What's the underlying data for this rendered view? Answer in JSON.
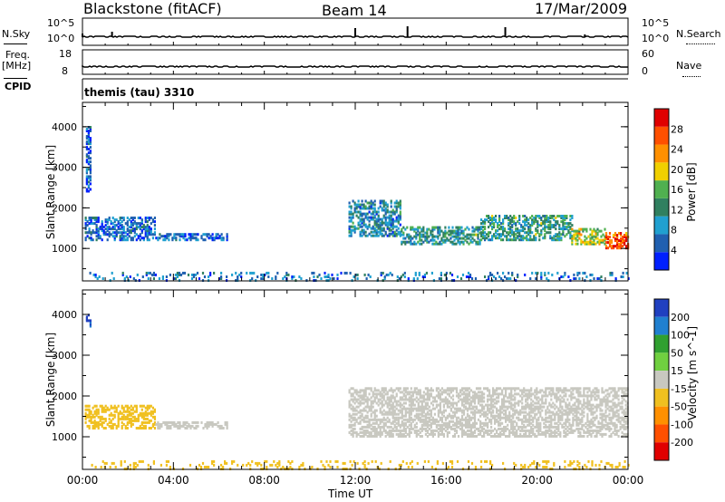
{
  "header": {
    "title": "Blackstone (fitACF)",
    "beam": "Beam 14",
    "date": "17/Mar/2009"
  },
  "top_panels": {
    "nsky_label": "N.Sky",
    "nsky_ticks": [
      "10^5",
      "10^0"
    ],
    "nsearch_label": "N.Search",
    "nsearch_ticks": [
      "10^5",
      "10^0"
    ],
    "freq_label": "Freq.",
    "freq_unit": "[MHz]",
    "freq_ticks": [
      "18",
      "8"
    ],
    "nave_label": "Nave",
    "nave_ticks": [
      "60",
      "0"
    ],
    "cpid_label": "CPID",
    "cpid_value": "themis (tau) 3310"
  },
  "x_axis": {
    "label": "Time UT",
    "ticks": [
      "00:00",
      "04:00",
      "08:00",
      "12:00",
      "16:00",
      "20:00",
      "00:00"
    ]
  },
  "colors": {
    "power": [
      "#0020ff",
      "#2060b0",
      "#20a0d0",
      "#308060",
      "#50b050",
      "#f0d000",
      "#ff9000",
      "#ff5000",
      "#e00000"
    ],
    "velocity": [
      "#2040c0",
      "#2080d0",
      "#30a030",
      "#70d040",
      "#c8c8c0",
      "#f0c020",
      "#ff9000",
      "#ff5000",
      "#e00000"
    ]
  },
  "chart_data": [
    {
      "type": "heatmap",
      "panel": "power",
      "ylabel": "Slant Range [km]",
      "yticks": [
        1000,
        2000,
        3000,
        4000
      ],
      "ylim": [
        200,
        4600
      ],
      "xlim": [
        0,
        24
      ],
      "colorbar_label": "Power [dB]",
      "colorbar_ticks": [
        4,
        8,
        12,
        16,
        20,
        24,
        28
      ],
      "colorbar_range": [
        0,
        32
      ],
      "regions": [
        {
          "t0": 0.1,
          "t1": 3.2,
          "r0": 1200,
          "r1": 1750,
          "v": 6
        },
        {
          "t0": 3.2,
          "t1": 6.4,
          "r0": 1200,
          "r1": 1350,
          "v": 5
        },
        {
          "t0": 0.15,
          "t1": 0.35,
          "r0": 2400,
          "r1": 4000,
          "v": 5
        },
        {
          "t0": 11.7,
          "t1": 14.0,
          "r0": 1300,
          "r1": 2200,
          "v": 9
        },
        {
          "t0": 14.0,
          "t1": 17.5,
          "r0": 1100,
          "r1": 1550,
          "v": 11
        },
        {
          "t0": 17.5,
          "t1": 21.5,
          "r0": 1200,
          "r1": 1800,
          "v": 12
        },
        {
          "t0": 21.5,
          "t1": 23.0,
          "r0": 1100,
          "r1": 1500,
          "v": 18
        },
        {
          "t0": 23.0,
          "t1": 24.0,
          "r0": 1000,
          "r1": 1400,
          "v": 27
        },
        {
          "t0": 0.3,
          "t1": 24.0,
          "r0": 200,
          "r1": 400,
          "v": 7
        }
      ]
    },
    {
      "type": "heatmap",
      "panel": "velocity",
      "ylabel": "Slant Range [km]",
      "yticks": [
        1000,
        2000,
        3000,
        4000
      ],
      "ylim": [
        200,
        4600
      ],
      "xlim": [
        0,
        24
      ],
      "colorbar_label": "Velocity [m s^-1]",
      "colorbar_ticks": [
        200,
        100,
        50,
        15,
        -15,
        -50,
        -100,
        -200
      ],
      "regions": [
        {
          "t0": 0.1,
          "t1": 3.2,
          "r0": 1200,
          "r1": 1750,
          "v": -30
        },
        {
          "t0": 3.2,
          "t1": 6.4,
          "r0": 1200,
          "r1": 1350,
          "v": 0
        },
        {
          "t0": 0.15,
          "t1": 0.35,
          "r0": 3700,
          "r1": 4000,
          "v": 150
        },
        {
          "t0": 11.7,
          "t1": 24.0,
          "r0": 1000,
          "r1": 2200,
          "v": 0
        },
        {
          "t0": 0.3,
          "t1": 24.0,
          "r0": 200,
          "r1": 400,
          "v": -30
        }
      ]
    }
  ]
}
